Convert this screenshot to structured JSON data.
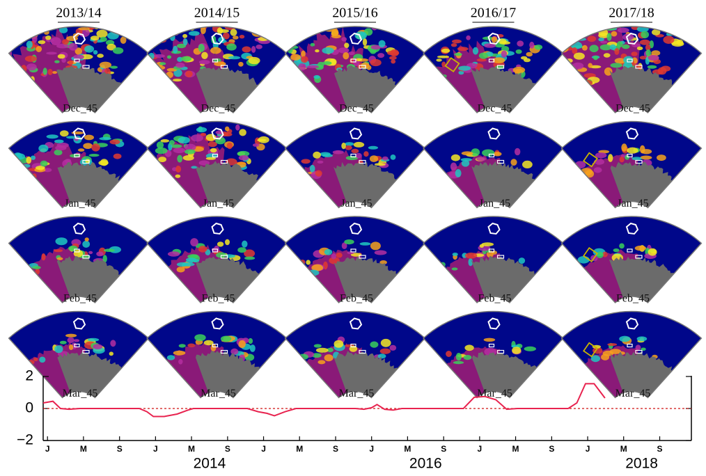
{
  "columns": [
    "2013/14",
    "2014/15",
    "2015/16",
    "2016/17",
    "2017/18"
  ],
  "rows": [
    "Dec_45",
    "Jan_45",
    "Feb_45",
    "Mar_45"
  ],
  "chart_data": {
    "type": "line",
    "x": [
      2012.96,
      2013.05,
      2013.12,
      2013.2,
      2013.3,
      2013.5,
      2013.7,
      2013.85,
      2013.92,
      2013.98,
      2014.08,
      2014.2,
      2014.3,
      2014.35,
      2014.6,
      2014.85,
      2014.95,
      2015.03,
      2015.1,
      2015.2,
      2015.3,
      2015.6,
      2015.85,
      2015.93,
      2016.0,
      2016.05,
      2016.12,
      2016.2,
      2016.28,
      2016.5,
      2016.85,
      2016.95,
      2017.05,
      2017.15,
      2017.25,
      2017.35,
      2017.6,
      2017.82,
      2017.9,
      2017.98,
      2018.06,
      2018.16
    ],
    "values": [
      0.35,
      0.45,
      0.0,
      -0.05,
      0.0,
      0.0,
      0.0,
      0.0,
      -0.2,
      -0.5,
      -0.5,
      -0.35,
      -0.1,
      0.0,
      0.0,
      0.0,
      -0.2,
      -0.3,
      -0.45,
      -0.2,
      0.0,
      0.0,
      0.0,
      -0.05,
      0.05,
      0.25,
      -0.05,
      -0.1,
      0.0,
      0.0,
      0.0,
      0.7,
      0.75,
      0.55,
      -0.05,
      0.0,
      0.0,
      0.0,
      0.35,
      1.55,
      1.55,
      0.65
    ],
    "color": "#e8234f",
    "xlim": [
      2012.96,
      2018.96
    ],
    "xticks": [
      {
        "value": 2013.0,
        "label": "J"
      },
      {
        "value": 2013.333,
        "label": "M"
      },
      {
        "value": 2013.667,
        "label": "S"
      },
      {
        "value": 2014.0,
        "label": "J"
      },
      {
        "value": 2014.333,
        "label": "M"
      },
      {
        "value": 2014.667,
        "label": "S"
      },
      {
        "value": 2015.0,
        "label": "J"
      },
      {
        "value": 2015.333,
        "label": "M"
      },
      {
        "value": 2015.667,
        "label": "S"
      },
      {
        "value": 2016.0,
        "label": "J"
      },
      {
        "value": 2016.333,
        "label": "M"
      },
      {
        "value": 2016.667,
        "label": "S"
      },
      {
        "value": 2017.0,
        "label": "J"
      },
      {
        "value": 2017.333,
        "label": "M"
      },
      {
        "value": 2017.667,
        "label": "S"
      },
      {
        "value": 2018.0,
        "label": "J"
      },
      {
        "value": 2018.333,
        "label": "M"
      },
      {
        "value": 2018.667,
        "label": "S"
      }
    ],
    "year_labels": [
      {
        "value": 2014.5,
        "label": "2014"
      },
      {
        "value": 2016.5,
        "label": "2016"
      },
      {
        "value": 2018.5,
        "label": "2018"
      }
    ],
    "ylim": [
      -2,
      2
    ],
    "yticks": [
      {
        "value": -2,
        "label": "−2"
      },
      0,
      2
    ],
    "reference_line": {
      "value": 0,
      "color": "#d01010"
    }
  }
}
